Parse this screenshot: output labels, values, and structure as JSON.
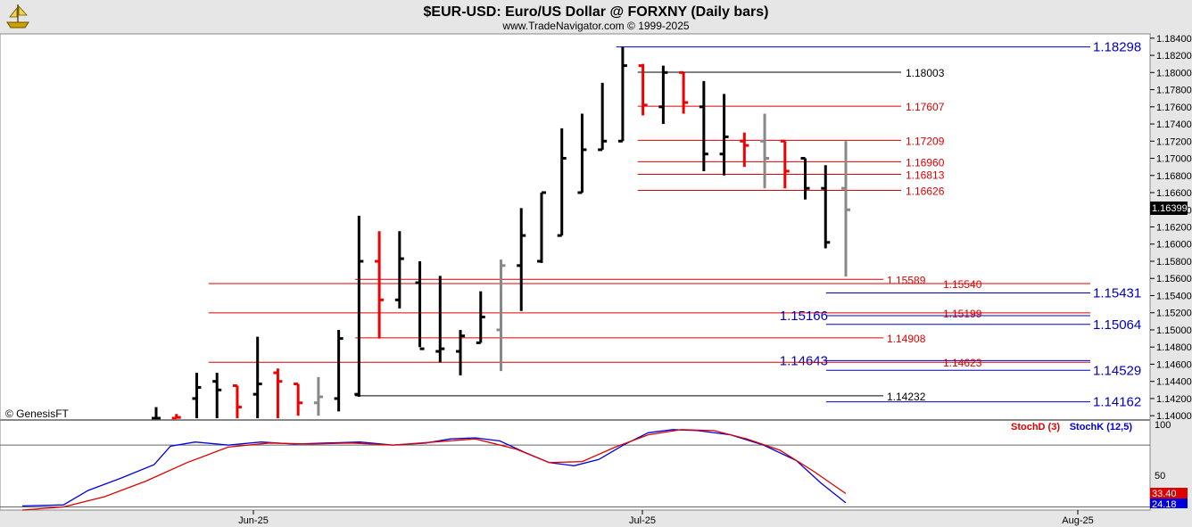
{
  "header": {
    "title": "$EUR-USD:  Euro/US Dollar @ FORXNY  (Daily bars)",
    "subtitle": "www.TradeNavigator.com © 1999-2025"
  },
  "watermark": "© GenesisFT",
  "logo_icon": "pirate-ship-icon",
  "colors": {
    "up_bar": "#000000",
    "down_bar": "#ee0000",
    "neutral_bar": "#888888",
    "level_red": "#dd0000",
    "level_blue": "#0000bb",
    "level_black": "#000000",
    "stochd": "#dd0000",
    "stochk": "#0000dd"
  },
  "chart_data": [
    {
      "type": "ohlc",
      "title": "$EUR-USD:  Euro/US Dollar @ FORXNY  (Daily bars)",
      "ylim": [
        1.1395,
        1.1845
      ],
      "y_ticks": [
        "1.14000",
        "1.14200",
        "1.14400",
        "1.14600",
        "1.14800",
        "1.15000",
        "1.15200",
        "1.15400",
        "1.15600",
        "1.15800",
        "1.16000",
        "1.16200",
        "1.16400",
        "1.16600",
        "1.16800",
        "1.17000",
        "1.17200",
        "1.17400",
        "1.17600",
        "1.17800",
        "1.18000",
        "1.18200",
        "1.18400"
      ],
      "x_labels": [
        "Jun-25",
        "Jul-25",
        "Aug-25"
      ],
      "last_price": "1.16399",
      "bars": [
        {
          "o": 1.139,
          "h": 1.141,
          "l": 1.1385,
          "c": 1.1395,
          "k": "u"
        },
        {
          "o": 1.139,
          "h": 1.1402,
          "l": 1.138,
          "c": 1.1398,
          "k": "d"
        },
        {
          "o": 1.142,
          "h": 1.145,
          "l": 1.1395,
          "c": 1.1433,
          "k": "u"
        },
        {
          "o": 1.144,
          "h": 1.145,
          "l": 1.139,
          "c": 1.143,
          "k": "u"
        },
        {
          "o": 1.1435,
          "h": 1.1435,
          "l": 1.1395,
          "c": 1.141,
          "k": "d"
        },
        {
          "o": 1.1425,
          "h": 1.1492,
          "l": 1.1395,
          "c": 1.1437,
          "k": "u"
        },
        {
          "o": 1.145,
          "h": 1.1455,
          "l": 1.1395,
          "c": 1.144,
          "k": "d"
        },
        {
          "o": 1.1437,
          "h": 1.1437,
          "l": 1.14,
          "c": 1.1415,
          "k": "d"
        },
        {
          "o": 1.1415,
          "h": 1.1445,
          "l": 1.14,
          "c": 1.1422,
          "k": "g"
        },
        {
          "o": 1.142,
          "h": 1.15,
          "l": 1.1405,
          "c": 1.149,
          "k": "u"
        },
        {
          "o": 1.1425,
          "h": 1.1633,
          "l": 1.1422,
          "c": 1.158,
          "k": "u"
        },
        {
          "o": 1.158,
          "h": 1.1615,
          "l": 1.149,
          "c": 1.1535,
          "k": "d"
        },
        {
          "o": 1.1535,
          "h": 1.1615,
          "l": 1.1525,
          "c": 1.1583,
          "k": "u"
        },
        {
          "o": 1.1555,
          "h": 1.158,
          "l": 1.148,
          "c": 1.1478,
          "k": "u"
        },
        {
          "o": 1.1475,
          "h": 1.1563,
          "l": 1.1462,
          "c": 1.1478,
          "k": "u"
        },
        {
          "o": 1.1475,
          "h": 1.15,
          "l": 1.1447,
          "c": 1.1493,
          "k": "u"
        },
        {
          "o": 1.1485,
          "h": 1.1545,
          "l": 1.1485,
          "c": 1.1515,
          "k": "u"
        },
        {
          "o": 1.15,
          "h": 1.1582,
          "l": 1.1452,
          "c": 1.1575,
          "k": "g"
        },
        {
          "o": 1.1575,
          "h": 1.1642,
          "l": 1.1522,
          "c": 1.161,
          "k": "u"
        },
        {
          "o": 1.158,
          "h": 1.166,
          "l": 1.1578,
          "c": 1.166,
          "k": "u"
        },
        {
          "o": 1.161,
          "h": 1.1735,
          "l": 1.161,
          "c": 1.17,
          "k": "u"
        },
        {
          "o": 1.166,
          "h": 1.1752,
          "l": 1.166,
          "c": 1.171,
          "k": "u"
        },
        {
          "o": 1.171,
          "h": 1.1788,
          "l": 1.171,
          "c": 1.172,
          "k": "u"
        },
        {
          "o": 1.172,
          "h": 1.183,
          "l": 1.172,
          "c": 1.1808,
          "k": "u"
        },
        {
          "o": 1.1808,
          "h": 1.181,
          "l": 1.175,
          "c": 1.1762,
          "k": "d"
        },
        {
          "o": 1.176,
          "h": 1.1808,
          "l": 1.174,
          "c": 1.18,
          "k": "u"
        },
        {
          "o": 1.18,
          "h": 1.18,
          "l": 1.1752,
          "c": 1.1765,
          "k": "d"
        },
        {
          "o": 1.176,
          "h": 1.179,
          "l": 1.1685,
          "c": 1.1705,
          "k": "u"
        },
        {
          "o": 1.1705,
          "h": 1.1775,
          "l": 1.168,
          "c": 1.1725,
          "k": "u"
        },
        {
          "o": 1.172,
          "h": 1.173,
          "l": 1.169,
          "c": 1.1715,
          "k": "d"
        },
        {
          "o": 1.172,
          "h": 1.1752,
          "l": 1.1665,
          "c": 1.17,
          "k": "g"
        },
        {
          "o": 1.172,
          "h": 1.172,
          "l": 1.1665,
          "c": 1.1685,
          "k": "d"
        },
        {
          "o": 1.17,
          "h": 1.17,
          "l": 1.1652,
          "c": 1.1665,
          "k": "u"
        },
        {
          "o": 1.1665,
          "h": 1.1692,
          "l": 1.1595,
          "c": 1.1602,
          "k": "u"
        },
        {
          "o": 1.1665,
          "h": 1.172,
          "l": 1.1562,
          "c": 1.164,
          "k": "g"
        }
      ],
      "levels": [
        {
          "value": 1.18298,
          "label": "1.18298",
          "color": "blue",
          "from": 0.517,
          "label_pos": "right",
          "big": true
        },
        {
          "value": 1.18003,
          "label": "1.18003",
          "color": "black",
          "from": 0.535,
          "label_pos": "end"
        },
        {
          "value": 1.17607,
          "label": "1.17607",
          "color": "red",
          "from": 0.535,
          "label_pos": "end"
        },
        {
          "value": 1.17209,
          "label": "1.17209",
          "color": "red",
          "from": 0.535,
          "label_pos": "end"
        },
        {
          "value": 1.1696,
          "label": "1.16960",
          "color": "red",
          "from": 0.535,
          "label_pos": "end"
        },
        {
          "value": 1.16813,
          "label": "1.16813",
          "color": "red",
          "from": 0.535,
          "label_pos": "end"
        },
        {
          "value": 1.16626,
          "label": "1.16626",
          "color": "red",
          "from": 0.535,
          "label_pos": "end"
        },
        {
          "value": 1.15589,
          "label": "1.15589",
          "color": "red",
          "from": 0.298,
          "label_pos": "mid1"
        },
        {
          "value": 1.1554,
          "label": "1.15540",
          "color": "red",
          "from": 0.175,
          "label_pos": "mid2"
        },
        {
          "value": 1.15431,
          "label": "1.15431",
          "color": "blue",
          "from": 0.693,
          "label_pos": "right",
          "big": true
        },
        {
          "value": 1.15199,
          "label": "1.15199",
          "color": "red",
          "from": 0.175,
          "label_pos": "mid2"
        },
        {
          "value": 1.15166,
          "label": "1.15166",
          "color": "blue",
          "from": 0.693,
          "label_pos": "left",
          "big": true
        },
        {
          "value": 1.15064,
          "label": "1.15064",
          "color": "blue",
          "from": 0.693,
          "label_pos": "right",
          "big": true
        },
        {
          "value": 1.14908,
          "label": "1.14908",
          "color": "red",
          "from": 0.298,
          "label_pos": "mid1"
        },
        {
          "value": 1.14643,
          "label": "1.14643",
          "color": "blue",
          "from": 0.693,
          "label_pos": "left",
          "big": true
        },
        {
          "value": 1.14623,
          "label": "1.14623",
          "color": "red",
          "from": 0.175,
          "label_pos": "mid2"
        },
        {
          "value": 1.14529,
          "label": "1.14529",
          "color": "blue",
          "from": 0.693,
          "label_pos": "right",
          "big": true
        },
        {
          "value": 1.14232,
          "label": "1.14232",
          "color": "black",
          "from": 0.298,
          "label_pos": "mid1"
        },
        {
          "value": 1.14162,
          "label": "1.14162",
          "color": "blue",
          "from": 0.693,
          "label_pos": "right",
          "big": true
        }
      ]
    },
    {
      "type": "line",
      "title": "",
      "ylim": [
        17,
        100
      ],
      "y_ticks": [
        "100",
        "50"
      ],
      "legend": [
        "StochD (3)",
        "StochK (12,5)"
      ],
      "last_values": {
        "stochd": "33.40",
        "stochk": "24.18"
      },
      "series": [
        {
          "name": "StochK (12,5)",
          "x": [
            0.0,
            0.05,
            0.08,
            0.12,
            0.16,
            0.18,
            0.21,
            0.25,
            0.29,
            0.33,
            0.37,
            0.41,
            0.45,
            0.49,
            0.52,
            0.55,
            0.58,
            0.61,
            0.64,
            0.67,
            0.7,
            0.73,
            0.76,
            0.79,
            0.82,
            0.86,
            0.9,
            0.94,
            0.97,
            1.0
          ],
          "y": [
            21,
            22,
            36,
            48,
            61,
            79,
            83,
            80,
            83,
            81,
            82,
            83,
            80,
            82,
            86,
            87,
            84,
            73,
            63,
            60,
            66,
            80,
            92,
            95,
            94,
            90,
            80,
            65,
            43,
            24
          ]
        },
        {
          "name": "StochD (3)",
          "x": [
            0.0,
            0.05,
            0.1,
            0.15,
            0.2,
            0.25,
            0.3,
            0.35,
            0.4,
            0.45,
            0.5,
            0.55,
            0.6,
            0.64,
            0.68,
            0.72,
            0.76,
            0.8,
            0.84,
            0.88,
            0.92,
            0.96,
            1.0
          ],
          "y": [
            17,
            20,
            30,
            45,
            63,
            78,
            82,
            81,
            82,
            80,
            83,
            86,
            76,
            63,
            64,
            78,
            90,
            95,
            94,
            86,
            75,
            55,
            33
          ]
        }
      ]
    }
  ]
}
